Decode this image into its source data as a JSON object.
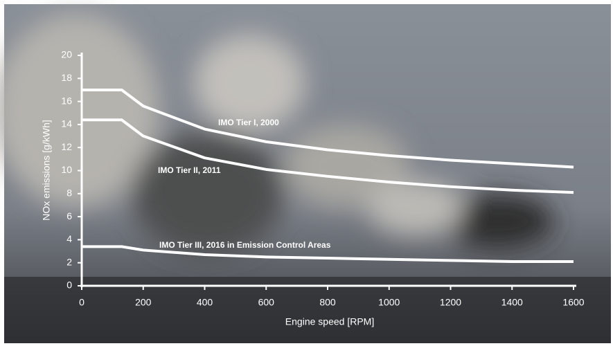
{
  "chart_data": {
    "type": "line",
    "xlabel": "Engine speed [RPM]",
    "ylabel": "NOx emissions [g/kWh]",
    "x": [
      0,
      130,
      200,
      400,
      600,
      800,
      1000,
      1200,
      1400,
      1600
    ],
    "series": [
      {
        "name": "IMO Tier I, 2000",
        "color": "#ffffff",
        "values": [
          17,
          17,
          15.6,
          13.6,
          12.5,
          11.8,
          11.3,
          10.9,
          10.6,
          10.3
        ]
      },
      {
        "name": "IMO Tier II, 2011",
        "color": "#ffffff",
        "values": [
          14.4,
          14.4,
          13.0,
          11.1,
          10.1,
          9.5,
          9.0,
          8.6,
          8.3,
          8.1
        ]
      },
      {
        "name": "IMO Tier III, 2016 in Emission Control Areas",
        "color": "#ffffff",
        "values": [
          3.4,
          3.4,
          3.1,
          2.7,
          2.5,
          2.4,
          2.3,
          2.2,
          2.1,
          2.1
        ]
      }
    ],
    "xlim": [
      0,
      1600
    ],
    "xticks": [
      0,
      200,
      400,
      600,
      800,
      1000,
      1200,
      1400,
      1600
    ],
    "ylim": [
      0,
      20
    ],
    "yticks": [
      0,
      2,
      4,
      6,
      8,
      10,
      12,
      14,
      16,
      18,
      20
    ]
  }
}
